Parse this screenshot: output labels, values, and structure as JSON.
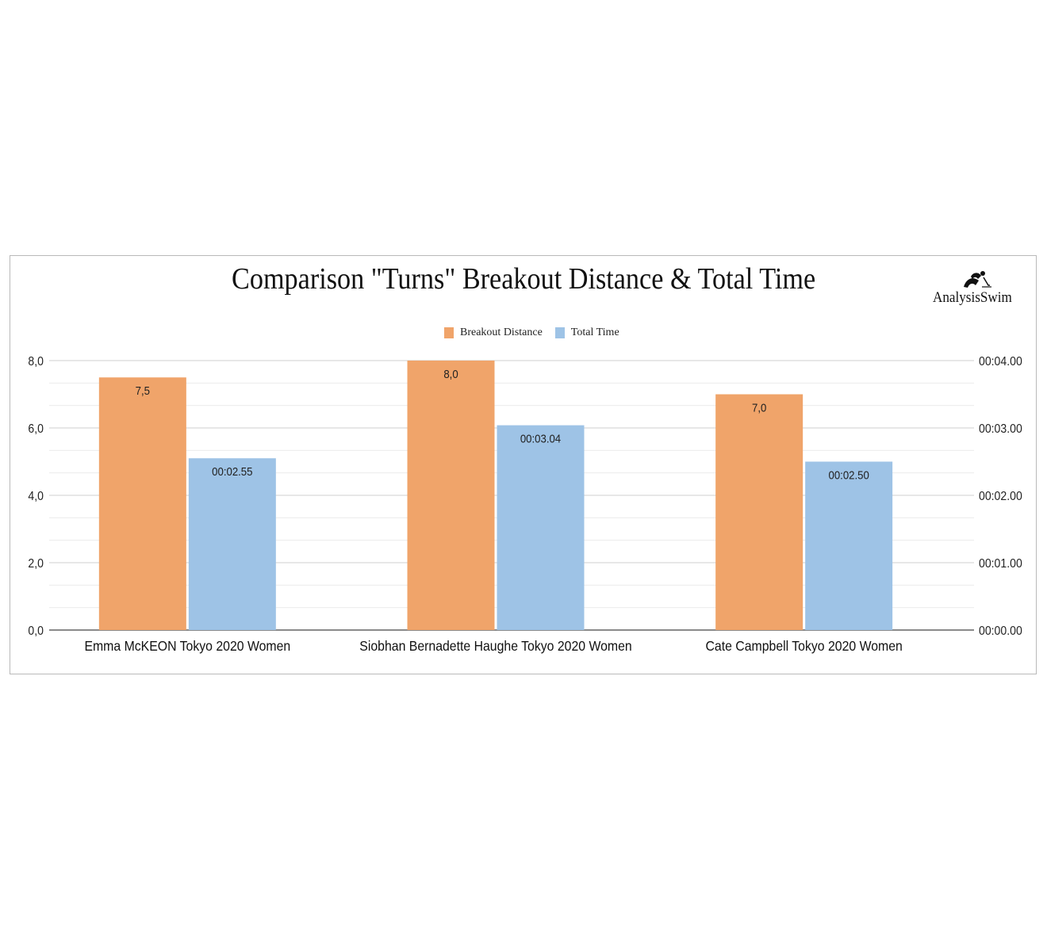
{
  "logo": {
    "text": "AnalysisSwim"
  },
  "chart_data": {
    "type": "bar",
    "title": "Comparison \"Turns\" Breakout Distance & Total Time",
    "categories": [
      "Emma McKEON Tokyo 2020 Women",
      "Siobhan Bernadette Haughe Tokyo 2020 Women",
      "Cate Campbell Tokyo 2020 Women"
    ],
    "series": [
      {
        "name": "Breakout Distance",
        "axis": "left",
        "color": "#f0a46a",
        "values": [
          7.5,
          8.0,
          7.0
        ],
        "labels": [
          "7,5",
          "8,0",
          "7,0"
        ]
      },
      {
        "name": "Total Time",
        "axis": "right",
        "color": "#9ec3e6",
        "values": [
          2.55,
          3.04,
          2.5
        ],
        "labels": [
          "00:02.55",
          "00:03.04",
          "00:02.50"
        ]
      }
    ],
    "left_axis": {
      "ylim": [
        0,
        8
      ],
      "ticks": [
        0,
        2,
        4,
        6,
        8
      ],
      "tick_labels": [
        "0,0",
        "2,0",
        "4,0",
        "6,0",
        "8,0"
      ]
    },
    "right_axis": {
      "ylim": [
        0,
        4
      ],
      "ticks": [
        0,
        1,
        2,
        3,
        4
      ],
      "tick_labels": [
        "00:00.00",
        "00:01.00",
        "00:02.00",
        "00:03.00",
        "00:04.00"
      ]
    },
    "grid": true,
    "legend_position": "top-center"
  }
}
